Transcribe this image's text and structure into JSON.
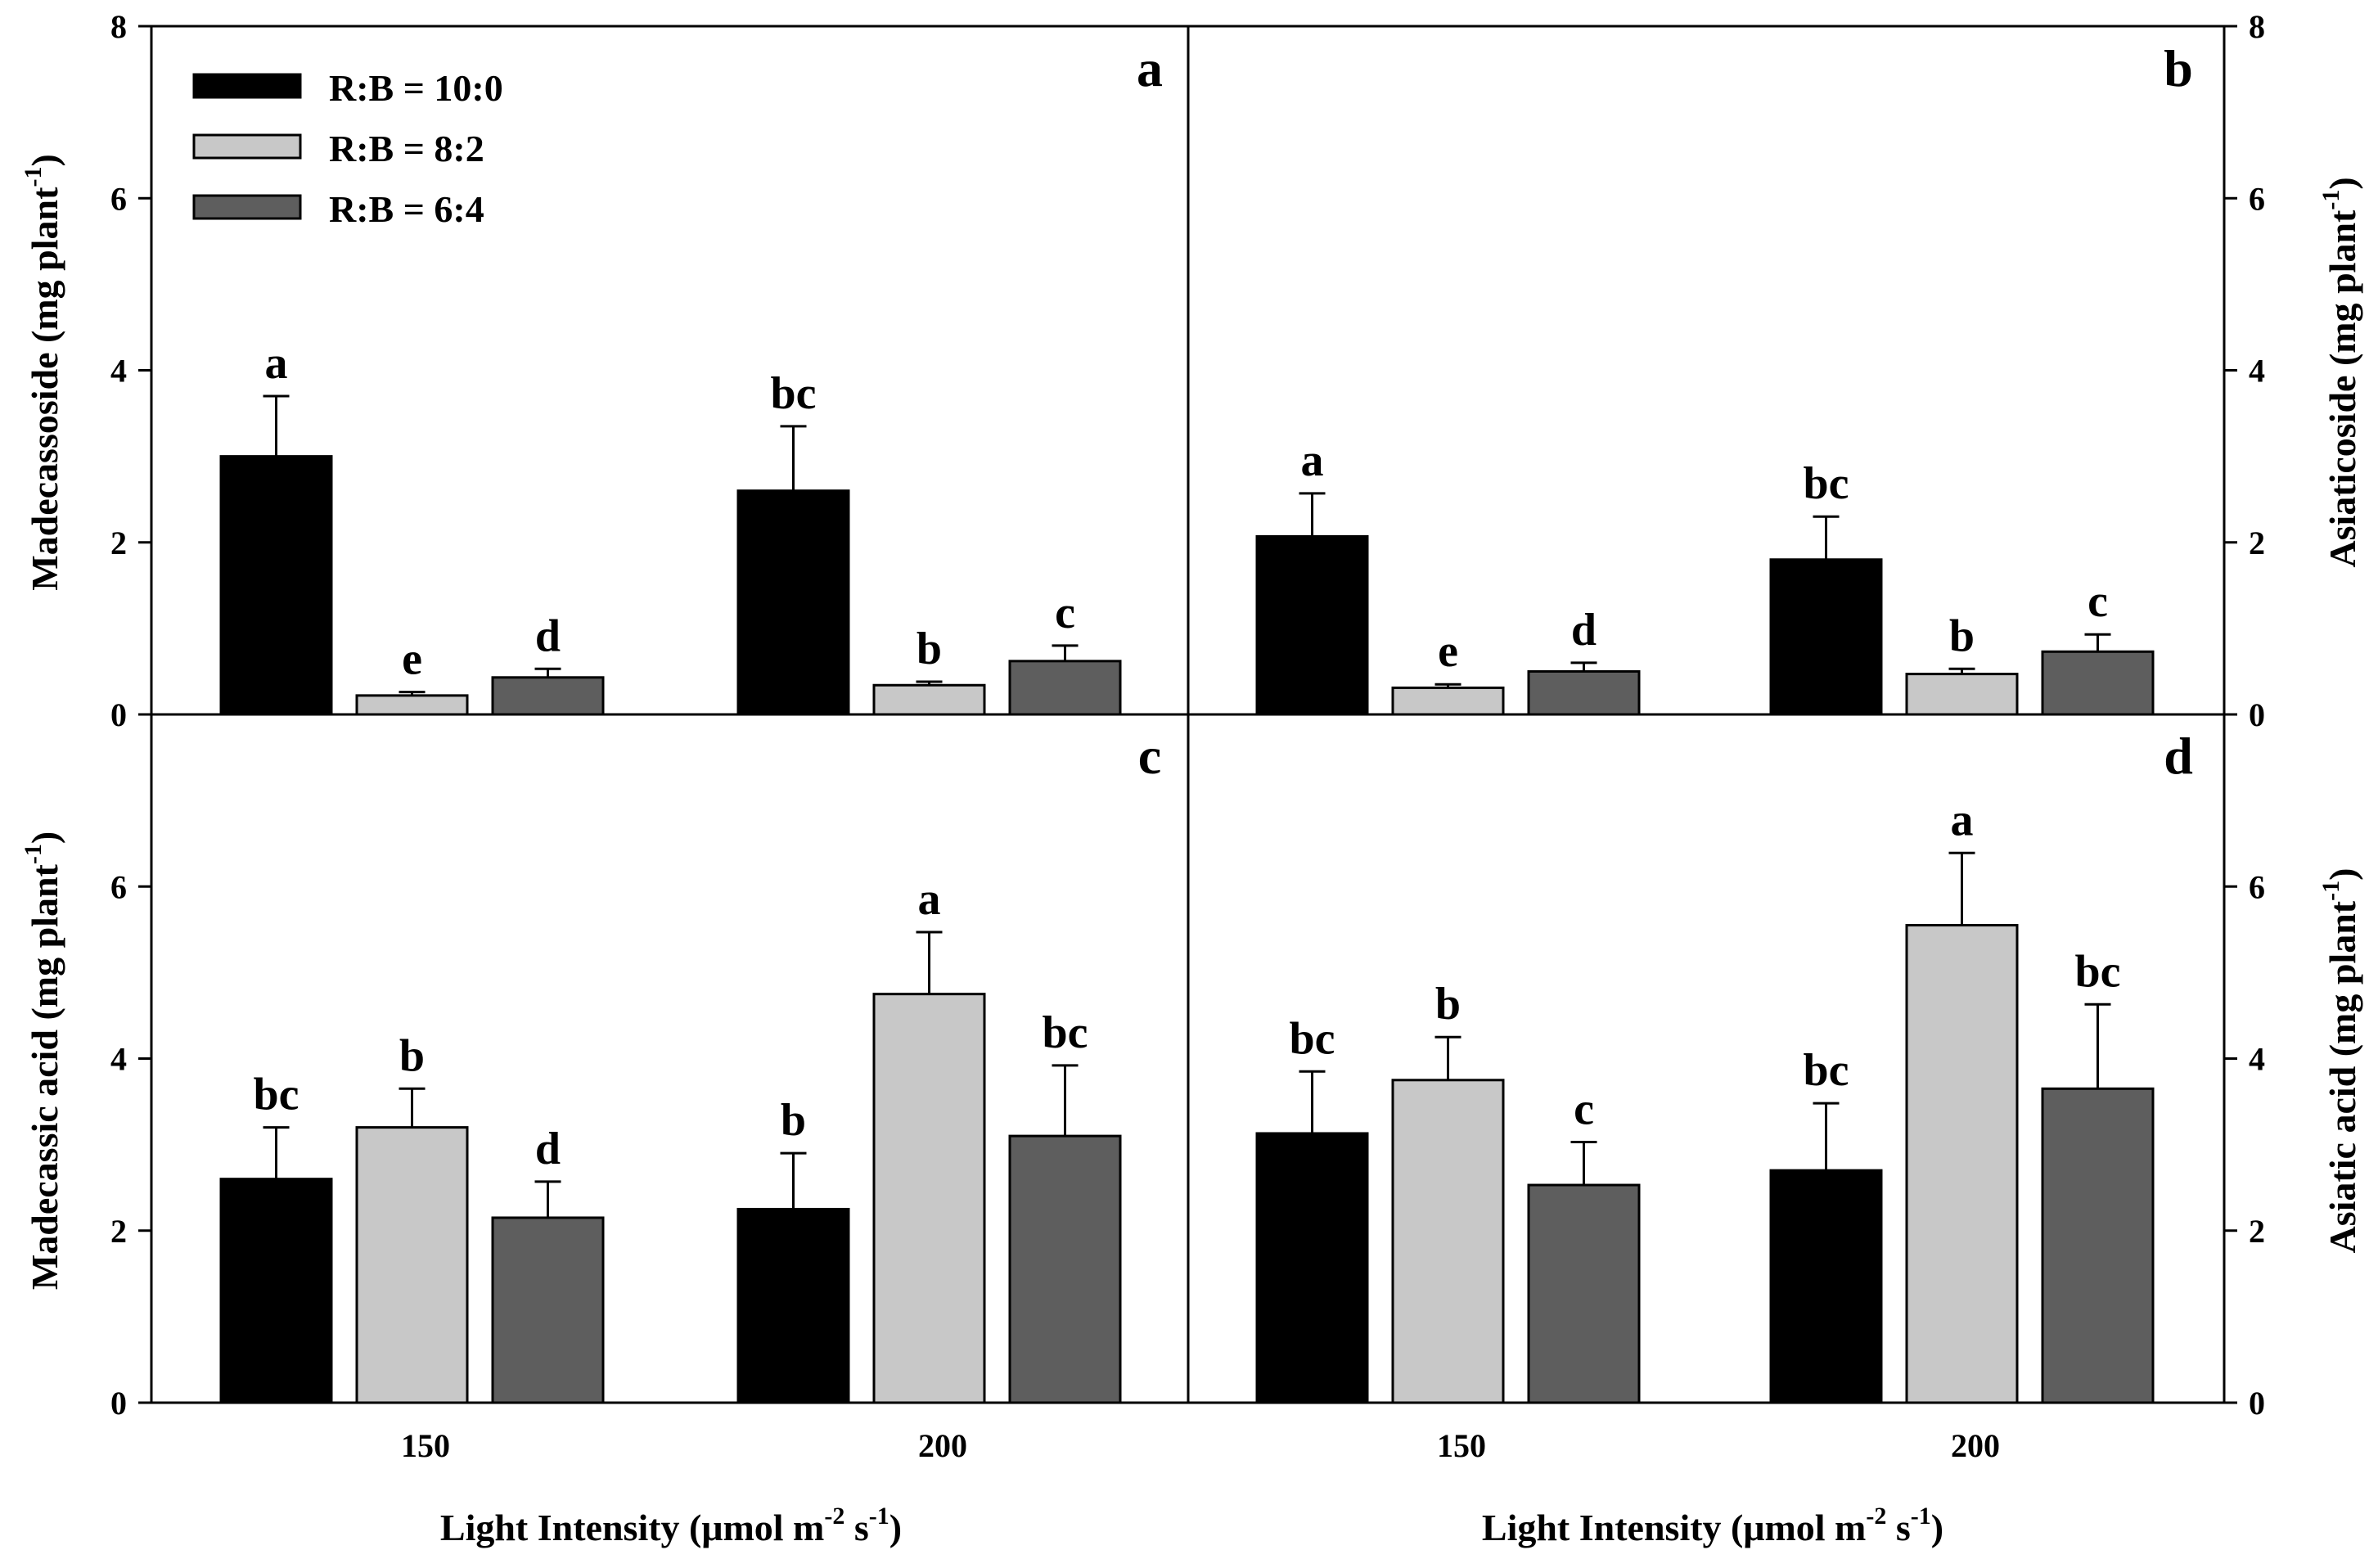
{
  "figure": {
    "series_names": [
      "R:B = 10:0",
      "R:B = 8:2",
      "R:B = 6:4"
    ],
    "series_colors": [
      "#000000",
      "#c8c8c8",
      "#5e5e5e"
    ],
    "xlabel": {
      "base": "Light Intensity (μmol m",
      "sup1": "-2",
      "mid": " s",
      "sup2": "-1",
      "end": ")"
    }
  },
  "chart_data": [
    {
      "panel": "a",
      "type": "bar",
      "categories": [
        "150",
        "200"
      ],
      "series": [
        {
          "name": "R:B = 10:0",
          "values": [
            3.0,
            2.6
          ],
          "errors": [
            0.7,
            0.75
          ],
          "letters": [
            "a",
            "bc"
          ]
        },
        {
          "name": "R:B = 8:2",
          "values": [
            0.22,
            0.34
          ],
          "errors": [
            0.04,
            0.04
          ],
          "letters": [
            "e",
            "b"
          ]
        },
        {
          "name": "R:B = 6:4",
          "values": [
            0.43,
            0.62
          ],
          "errors": [
            0.1,
            0.18
          ],
          "letters": [
            "d",
            "c"
          ]
        }
      ],
      "ylabel": {
        "base": "Madecassoside (mg plant",
        "sup": "-1",
        "end": ")"
      },
      "ylim": [
        0,
        8
      ],
      "yticks": [
        "0",
        "2",
        "4",
        "6",
        "8"
      ],
      "yaxis_side": "left",
      "show_xticks": false,
      "legend": "top-left"
    },
    {
      "panel": "b",
      "type": "bar",
      "categories": [
        "150",
        "200"
      ],
      "series": [
        {
          "name": "R:B = 10:0",
          "values": [
            2.07,
            1.8
          ],
          "errors": [
            0.5,
            0.5
          ],
          "letters": [
            "a",
            "bc"
          ]
        },
        {
          "name": "R:B = 8:2",
          "values": [
            0.31,
            0.47
          ],
          "errors": [
            0.04,
            0.06
          ],
          "letters": [
            "e",
            "b"
          ]
        },
        {
          "name": "R:B = 6:4",
          "values": [
            0.5,
            0.73
          ],
          "errors": [
            0.1,
            0.2
          ],
          "letters": [
            "d",
            "c"
          ]
        }
      ],
      "ylabel": {
        "base": "Asiaticoside (mg plant",
        "sup": "-1",
        "end": ")"
      },
      "ylim": [
        0,
        8
      ],
      "yticks": [
        "0",
        "2",
        "4",
        "6",
        "8"
      ],
      "yaxis_side": "right",
      "show_xticks": false
    },
    {
      "panel": "c",
      "type": "bar",
      "categories": [
        "150",
        "200"
      ],
      "series": [
        {
          "name": "R:B = 10:0",
          "values": [
            2.6,
            2.25
          ],
          "errors": [
            0.6,
            0.65
          ],
          "letters": [
            "bc",
            "b"
          ]
        },
        {
          "name": "R:B = 8:2",
          "values": [
            3.2,
            4.75
          ],
          "errors": [
            0.45,
            0.72
          ],
          "letters": [
            "b",
            "a"
          ]
        },
        {
          "name": "R:B = 6:4",
          "values": [
            2.15,
            3.1
          ],
          "errors": [
            0.42,
            0.82
          ],
          "letters": [
            "d",
            "bc"
          ]
        }
      ],
      "ylabel": {
        "base": "Madecassic acid (mg plant",
        "sup": "-1",
        "end": ")"
      },
      "ylim": [
        0,
        8
      ],
      "yticks": [
        "0",
        "2",
        "4",
        "6"
      ],
      "yaxis_side": "left",
      "show_xticks": true
    },
    {
      "panel": "d",
      "type": "bar",
      "categories": [
        "150",
        "200"
      ],
      "series": [
        {
          "name": "R:B = 10:0",
          "values": [
            3.13,
            2.7
          ],
          "errors": [
            0.72,
            0.78
          ],
          "letters": [
            "bc",
            "bc"
          ]
        },
        {
          "name": "R:B = 8:2",
          "values": [
            3.75,
            5.55
          ],
          "errors": [
            0.5,
            0.84
          ],
          "letters": [
            "b",
            "a"
          ]
        },
        {
          "name": "R:B = 6:4",
          "values": [
            2.53,
            3.65
          ],
          "errors": [
            0.5,
            0.98
          ],
          "letters": [
            "c",
            "bc"
          ]
        }
      ],
      "ylabel": {
        "base": "Asiatic acid (mg plant",
        "sup": "-1",
        "end": ")"
      },
      "ylim": [
        0,
        8
      ],
      "yticks": [
        "0",
        "2",
        "4",
        "6"
      ],
      "yaxis_side": "right",
      "show_xticks": true
    }
  ]
}
